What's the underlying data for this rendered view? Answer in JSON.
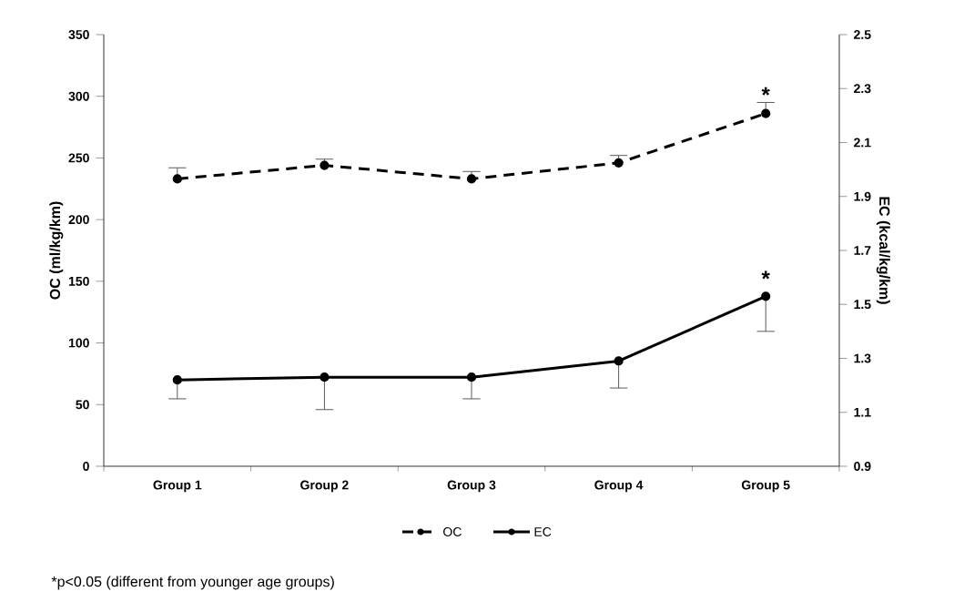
{
  "chart_data": {
    "type": "line",
    "categories": [
      "Group 1",
      "Group 2",
      "Group 3",
      "Group 4",
      "Group 5"
    ],
    "ylabel": "OC (ml/kg/km)",
    "y2label": "EC (kcal/kg/km)",
    "ylim": [
      0,
      350
    ],
    "yticks": [
      0,
      50,
      100,
      150,
      200,
      250,
      300,
      350
    ],
    "y2lim": [
      0.9,
      2.5
    ],
    "y2ticks": [
      {
        "value": 0.9,
        "label": "0.9"
      },
      {
        "value": 1.1,
        "label": "1.1"
      },
      {
        "value": 1.3,
        "label": "1.3"
      },
      {
        "value": 1.5,
        "label": "1.5"
      },
      {
        "value": 1.7,
        "label": "1.7"
      },
      {
        "value": 1.9,
        "label": "1.9"
      },
      {
        "value": 2.1,
        "label": "2.1"
      },
      {
        "value": 2.3,
        "label": "2.3"
      },
      {
        "value": 2.5,
        "label": "2.5"
      }
    ],
    "series": [
      {
        "name": "OC",
        "color": "#000000",
        "line_style": "dashed",
        "values": [
          233,
          244,
          233,
          246,
          286
        ],
        "errors": [
          [
            233,
            242
          ],
          [
            244,
            249
          ],
          [
            233,
            239
          ],
          [
            246,
            252
          ],
          [
            286,
            295
          ]
        ]
      },
      {
        "name": "EC",
        "color": "#000000",
        "line_style": "solid",
        "axis": "y2",
        "values": [
          1.22,
          1.23,
          1.23,
          1.29,
          1.53
        ],
        "errors": [
          [
            1.15,
            1.22
          ],
          [
            1.11,
            1.23
          ],
          [
            1.15,
            1.23
          ],
          [
            1.19,
            1.29
          ],
          [
            1.4,
            1.53
          ]
        ]
      }
    ],
    "marker": "circle",
    "legend": "bottom",
    "grid": false,
    "annotations": [
      {
        "text": "*",
        "x": "Group 5",
        "y": 286
      },
      {
        "text": "*",
        "x": "Group 5",
        "y": 137
      },
      "*p<0.05 (different from younger age groups)"
    ]
  }
}
